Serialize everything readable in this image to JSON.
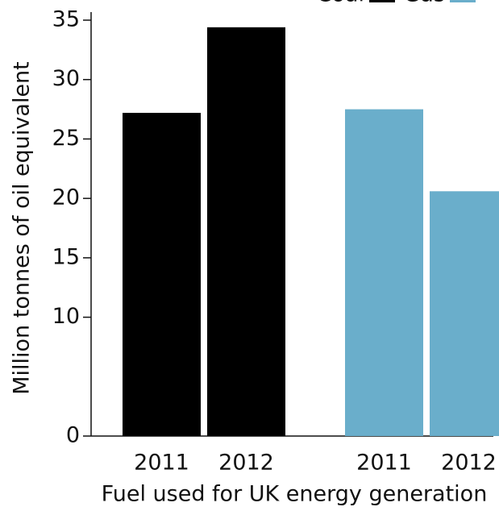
{
  "chart_data": {
    "type": "bar",
    "x_label": "Fuel used for UK energy generation",
    "y_label": "Million tonnes of oil equivalent",
    "categories": [
      "2011",
      "2012"
    ],
    "series": [
      {
        "name": "Coal",
        "color": "#000000",
        "values": [
          27.2,
          34.4
        ]
      },
      {
        "name": "Gas",
        "color": "#6aaecb",
        "values": [
          27.5,
          20.6
        ]
      }
    ],
    "ylim": [
      0,
      35
    ],
    "yticks": [
      0,
      10,
      15,
      20,
      25,
      30,
      35
    ]
  }
}
